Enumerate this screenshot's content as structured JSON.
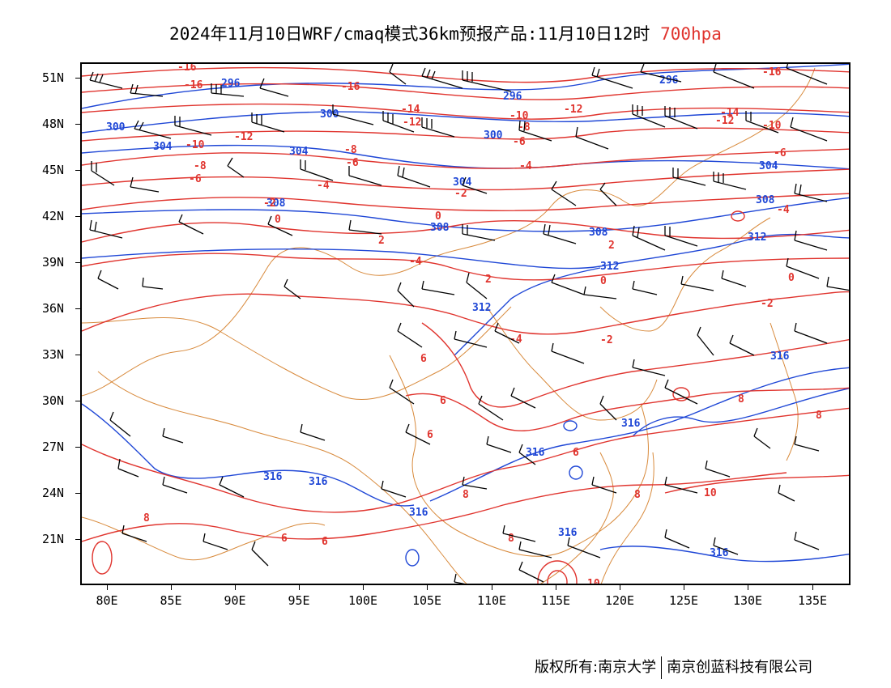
{
  "title": {
    "main": "2024年11月10日WRF/cmaq模式36km预报产品:11月10日12时",
    "level": "700hpa",
    "level_color": "#e0342e"
  },
  "axes": {
    "lat_labels": [
      "51N",
      "48N",
      "45N",
      "42N",
      "39N",
      "36N",
      "33N",
      "30N",
      "27N",
      "24N",
      "21N"
    ],
    "lon_labels": [
      "80E",
      "85E",
      "90E",
      "95E",
      "100E",
      "105E",
      "110E",
      "115E",
      "120E",
      "125E",
      "130E",
      "135E"
    ],
    "lat_range": [
      18,
      52
    ],
    "lon_range": [
      78,
      138
    ]
  },
  "layers": {
    "geopotential_height": {
      "color": "#1f47d6",
      "labels": [
        "296",
        "300",
        "304",
        "308",
        "312",
        "316"
      ]
    },
    "temperature": {
      "color": "#e0342e",
      "labels": [
        "-16",
        "-14",
        "-12",
        "-10",
        "-8",
        "-6",
        "-4",
        "-2",
        "0",
        "2",
        "4",
        "6",
        "8",
        "10"
      ]
    },
    "wind_barbs": {
      "color": "#000000"
    },
    "borders": {
      "color": "#d88a3c"
    }
  },
  "copyright": {
    "owner": "版权所有:南京大学",
    "company": "南京创蓝科技有限公司"
  }
}
